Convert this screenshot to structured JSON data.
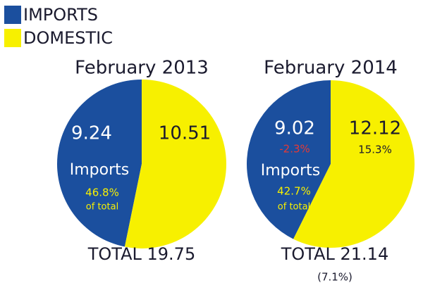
{
  "legend": [
    {
      "name": "IMPORTS",
      "color": "#1b4f9e"
    },
    {
      "name": "DOMESTIC",
      "color": "#f7f000"
    }
  ],
  "chart_data": [
    {
      "type": "pie",
      "title": "February 2013",
      "values": [
        9.24,
        10.51
      ],
      "annotations": [
        "Imports",
        "46.8%",
        "of total",
        "TOTAL 19.75"
      ]
    },
    {
      "type": "pie",
      "title": "February 2014",
      "values": [
        9.02,
        12.12
      ],
      "annotations": [
        "-2.3%",
        "15.3%",
        "Imports",
        "42.7%",
        "of total",
        "TOTAL 21.14",
        "(7.1%)"
      ]
    }
  ]
}
